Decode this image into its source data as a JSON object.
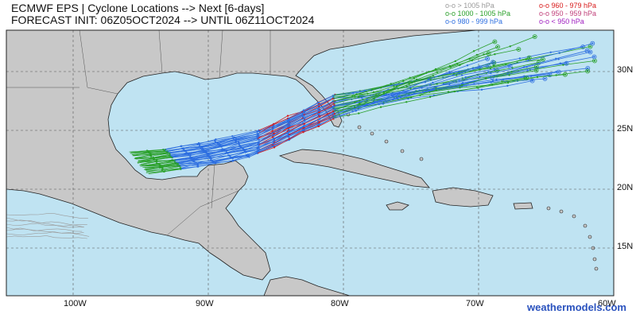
{
  "title": {
    "line1": "ECMWF EPS | Cyclone Locations --> Next [6-days]",
    "line2": "FORECAST INIT: 06Z05OCT2024 --> UNTIL 06Z11OCT2024"
  },
  "legend": {
    "col1": [
      {
        "label": "o-o > 1005 hPa",
        "color": "#9a9a9a"
      },
      {
        "label": "o-o 1000 - 1005 hPa",
        "color": "#2aa02a"
      },
      {
        "label": "o-o 980 - 999 hPa",
        "color": "#2e6fe0"
      }
    ],
    "col2": [
      {
        "label": "o-o 960 - 979 hPa",
        "color": "#d81b1b"
      },
      {
        "label": "o-o 950 - 959 hPa",
        "color": "#c0407a"
      },
      {
        "label": "o-o < 950 hPa",
        "color": "#a020c0"
      }
    ]
  },
  "axes": {
    "lat_ticks": [
      "30N",
      "25N",
      "20N",
      "15N"
    ],
    "lon_ticks": [
      "100W",
      "90W",
      "80W",
      "70W",
      "60W"
    ]
  },
  "brand": "weathermodels.com",
  "colors": {
    "ocean": "#bfe3f2",
    "land": "#c8c8c8",
    "gray_track": "#9a9a9a",
    "green_track": "#2aa02a",
    "blue_track": "#2e6fe0",
    "red_track": "#d81b1b"
  }
}
